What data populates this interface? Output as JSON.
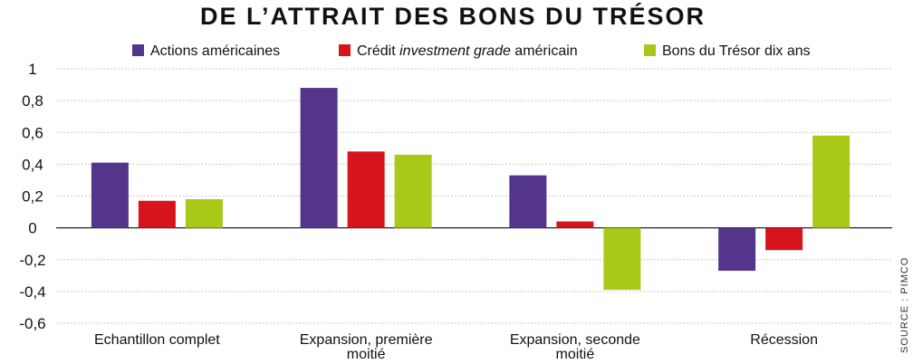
{
  "chart_data": {
    "type": "bar",
    "title": "DE L’ATTRAIT DES BONS DU TRÉSOR",
    "source": "SOURCE : PIMCO",
    "categories": [
      [
        "Echantillon complet"
      ],
      [
        "Expansion, première",
        "moitié"
      ],
      [
        "Expansion, seconde",
        "moitié"
      ],
      [
        "Récession"
      ]
    ],
    "series": [
      {
        "name": "Actions américaines",
        "name_parts": [
          {
            "text": "Actions américaines",
            "italic": false
          }
        ],
        "color": "#54358c",
        "values": [
          0.41,
          0.88,
          0.33,
          -0.27
        ]
      },
      {
        "name": "Crédit investment grade américain",
        "name_parts": [
          {
            "text": "Crédit ",
            "italic": false
          },
          {
            "text": "investment grade",
            "italic": true
          },
          {
            "text": " américain",
            "italic": false
          }
        ],
        "color": "#d7141c",
        "values": [
          0.17,
          0.48,
          0.04,
          -0.14
        ]
      },
      {
        "name": "Bons du Trésor dix ans",
        "name_parts": [
          {
            "text": "Bons du Trésor dix ans",
            "italic": false
          }
        ],
        "color": "#a9c919",
        "values": [
          0.18,
          0.46,
          -0.39,
          0.58
        ]
      }
    ],
    "yticks": [
      "1",
      "0,8",
      "0,6",
      "0,4",
      "0,2",
      "0",
      "-0,2",
      "-0,4",
      "-0,6"
    ],
    "ylim": [
      -0.6,
      1
    ],
    "grid": true,
    "legend_position": "top-center"
  }
}
